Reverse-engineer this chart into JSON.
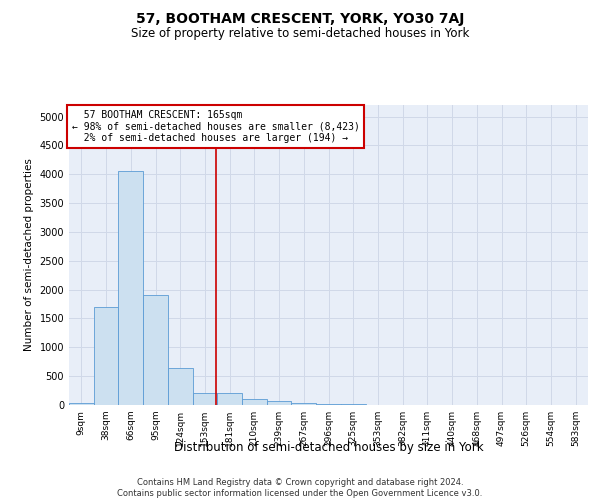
{
  "title": "57, BOOTHAM CRESCENT, YORK, YO30 7AJ",
  "subtitle": "Size of property relative to semi-detached houses in York",
  "xlabel": "Distribution of semi-detached houses by size in York",
  "ylabel": "Number of semi-detached properties",
  "footer_line1": "Contains HM Land Registry data © Crown copyright and database right 2024.",
  "footer_line2": "Contains public sector information licensed under the Open Government Licence v3.0.",
  "bin_labels": [
    "9sqm",
    "38sqm",
    "66sqm",
    "95sqm",
    "124sqm",
    "153sqm",
    "181sqm",
    "210sqm",
    "239sqm",
    "267sqm",
    "296sqm",
    "325sqm",
    "353sqm",
    "382sqm",
    "411sqm",
    "440sqm",
    "468sqm",
    "497sqm",
    "526sqm",
    "554sqm",
    "583sqm"
  ],
  "bar_values": [
    30,
    1700,
    4050,
    1900,
    650,
    200,
    200,
    100,
    75,
    40,
    20,
    10,
    5,
    3,
    2,
    1,
    1,
    0,
    0,
    0,
    0
  ],
  "bar_color": "#cce0f0",
  "bar_edge_color": "#5b9bd5",
  "grid_color": "#d0d8e8",
  "background_color": "#e8eef8",
  "property_label": "57 BOOTHAM CRESCENT: 165sqm",
  "pct_smaller": 98,
  "count_smaller": 8423,
  "pct_larger": 2,
  "count_larger": 194,
  "annotation_box_color": "#ffffff",
  "annotation_box_edge": "#cc0000",
  "vline_color": "#cc0000",
  "vline_x": 5.43,
  "ylim": [
    0,
    5200
  ],
  "yticks": [
    0,
    500,
    1000,
    1500,
    2000,
    2500,
    3000,
    3500,
    4000,
    4500,
    5000
  ],
  "title_fontsize": 10,
  "subtitle_fontsize": 8.5,
  "ylabel_fontsize": 7.5,
  "xlabel_fontsize": 8.5,
  "tick_fontsize": 6.5,
  "annotation_fontsize": 7,
  "footer_fontsize": 6
}
